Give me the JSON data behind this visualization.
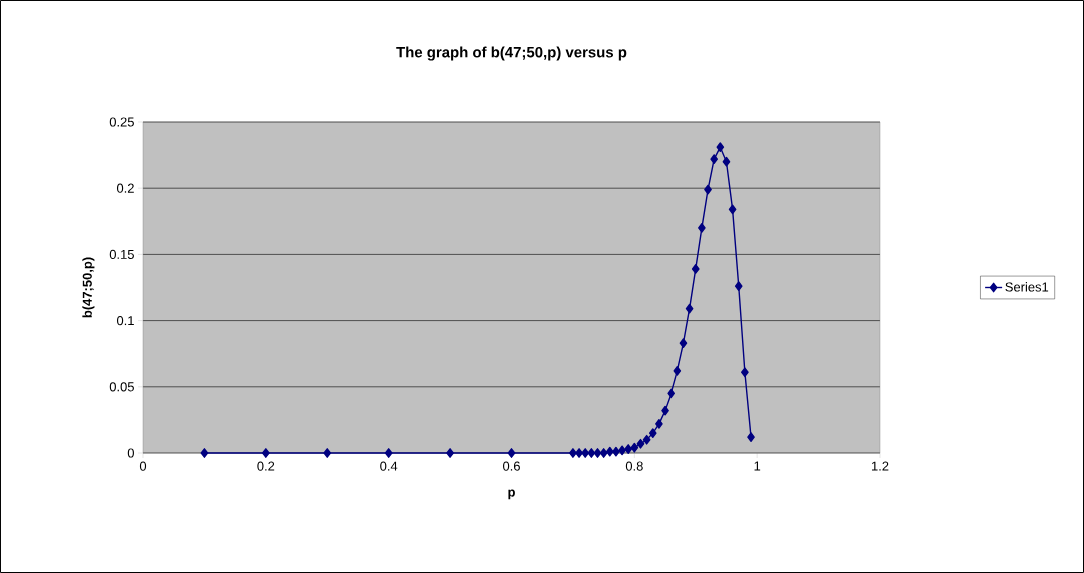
{
  "chart_data": {
    "type": "line",
    "title": "The graph of b(47;50,p) versus p",
    "xlabel": "p",
    "ylabel": "b(47;50,p)",
    "x": [
      0.1,
      0.2,
      0.3,
      0.4,
      0.5,
      0.6,
      0.7,
      0.71,
      0.72,
      0.73,
      0.74,
      0.75,
      0.76,
      0.77,
      0.78,
      0.79,
      0.8,
      0.81,
      0.82,
      0.83,
      0.84,
      0.85,
      0.86,
      0.87,
      0.88,
      0.89,
      0.9,
      0.91,
      0.92,
      0.93,
      0.94,
      0.95,
      0.96,
      0.97,
      0.98,
      0.99
    ],
    "series": [
      {
        "name": "Series1",
        "color": "#000080",
        "values": [
          0,
          0,
          0,
          0,
          0,
          0,
          0,
          0,
          0,
          0,
          0,
          0,
          0.001,
          0.001,
          0.002,
          0.003,
          0.004,
          0.007,
          0.01,
          0.015,
          0.022,
          0.032,
          0.045,
          0.062,
          0.083,
          0.109,
          0.139,
          0.17,
          0.199,
          0.222,
          0.231,
          0.22,
          0.184,
          0.126,
          0.061,
          0.012
        ]
      }
    ],
    "xlim": [
      0,
      1.2
    ],
    "ylim": [
      0,
      0.25
    ],
    "xticks": [
      0,
      0.2,
      0.4,
      0.6,
      0.8,
      1,
      1.2
    ],
    "yticks": [
      0,
      0.05,
      0.1,
      0.15,
      0.2,
      0.25
    ],
    "grid": "y",
    "legend": "right",
    "marker": "diamond",
    "line_style": "solid"
  }
}
